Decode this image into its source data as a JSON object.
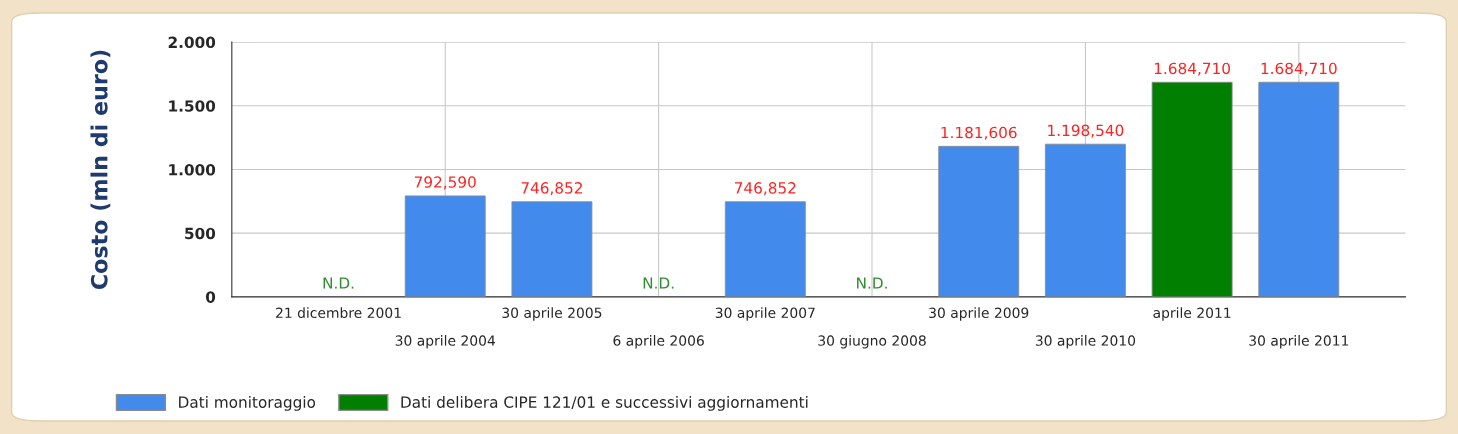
{
  "chart_data": {
    "type": "bar",
    "ylabel": "Costo (mln di euro)",
    "categories": [
      "21 dicembre 2001",
      "30 aprile 2004",
      "30 aprile 2005",
      "6 aprile 2006",
      "30 aprile 2007",
      "30 giugno 2008",
      "30 aprile 2009",
      "30 aprile 2010",
      "aprile 2011",
      "30 aprile 2011"
    ],
    "series": [
      {
        "name": "Dati monitoraggio",
        "color": "#438aed",
        "values": [
          null,
          792.59,
          746.852,
          null,
          746.852,
          null,
          1181.606,
          1198.54,
          null,
          1684.71
        ],
        "value_labels": [
          "N.D.",
          "792,590",
          "746,852",
          "N.D.",
          "746,852",
          "N.D.",
          "1.181,606",
          "1.198,540",
          null,
          "1.684,710"
        ]
      },
      {
        "name": "Dati delibera CIPE 121/01 e successivi aggiornamenti",
        "color": "#007f00",
        "values": [
          null,
          null,
          null,
          null,
          null,
          null,
          null,
          null,
          1684.71,
          null
        ],
        "value_labels": [
          null,
          null,
          null,
          null,
          null,
          null,
          null,
          null,
          "1.684,710",
          null
        ]
      }
    ],
    "ylim": [
      0,
      2000
    ],
    "yticks": [
      0,
      {
        "value": 500,
        "label": "500"
      },
      {
        "value": 1000,
        "label": "1.000"
      },
      {
        "value": 1500,
        "label": "1.500"
      },
      {
        "value": 2000,
        "label": "2.000"
      }
    ],
    "grid": true,
    "legend": "bottom left"
  }
}
